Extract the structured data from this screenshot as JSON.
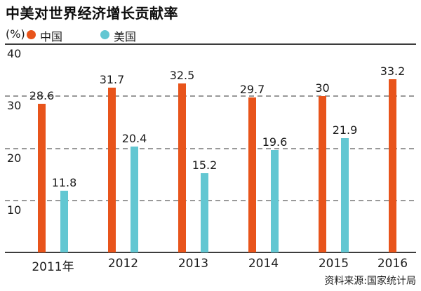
{
  "title": "中美对世界经济增长贡献率",
  "unit_label": "(%)",
  "source": "资料来源:国家统计局",
  "colors": {
    "china": "#E8541B",
    "usa": "#63C7D2",
    "grid_dashed": "#999999",
    "axis_solid": "#3C3C3C",
    "text": "#1A1A1A"
  },
  "legend": [
    {
      "label": "中国",
      "color": "#E8541B"
    },
    {
      "label": "美国",
      "color": "#63C7D2"
    }
  ],
  "chart_data": {
    "type": "bar",
    "title": "中美对世界经济增长贡献率",
    "ylabel": "(%)",
    "categories": [
      "2011年",
      "2012",
      "2013",
      "2014",
      "2015",
      "2016"
    ],
    "series": [
      {
        "name": "中国",
        "color": "#E8541B",
        "values": [
          28.6,
          31.7,
          32.5,
          29.7,
          30,
          33.2
        ]
      },
      {
        "name": "美国",
        "color": "#63C7D2",
        "values": [
          11.8,
          20.4,
          15.2,
          19.6,
          21.9,
          null
        ]
      }
    ],
    "ylim": [
      0,
      40
    ],
    "yticks": [
      10,
      20,
      30,
      40
    ],
    "grid": "horizontal dashed, solid line at 40 and baseline",
    "legend_position": "top-left",
    "value_labels": "above each bar",
    "source": "资料来源:国家统计局"
  }
}
